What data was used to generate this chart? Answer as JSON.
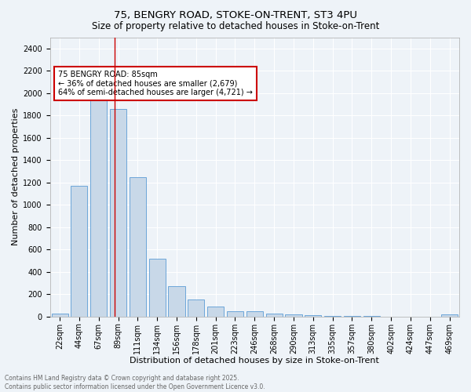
{
  "title1": "75, BENGRY ROAD, STOKE-ON-TRENT, ST3 4PU",
  "title2": "Size of property relative to detached houses in Stoke-on-Trent",
  "xlabel": "Distribution of detached houses by size in Stoke-on-Trent",
  "ylabel": "Number of detached properties",
  "bar_labels": [
    "22sqm",
    "44sqm",
    "67sqm",
    "89sqm",
    "111sqm",
    "134sqm",
    "156sqm",
    "178sqm",
    "201sqm",
    "223sqm",
    "246sqm",
    "268sqm",
    "290sqm",
    "313sqm",
    "335sqm",
    "357sqm",
    "380sqm",
    "402sqm",
    "424sqm",
    "447sqm",
    "469sqm"
  ],
  "bar_values": [
    30,
    1170,
    2000,
    1860,
    1245,
    515,
    275,
    150,
    90,
    45,
    45,
    25,
    20,
    10,
    8,
    5,
    3,
    2,
    1,
    1,
    20
  ],
  "bar_color": "#c8d8e8",
  "bar_edge_color": "#5b9bd5",
  "annotation_text": "75 BENGRY ROAD: 85sqm\n← 36% of detached houses are smaller (2,679)\n64% of semi-detached houses are larger (4,721) →",
  "annotation_box_color": "#ffffff",
  "annotation_box_edge": "#cc0000",
  "vertical_line_x": 2.82,
  "vertical_line_color": "#cc0000",
  "footer_text": "Contains HM Land Registry data © Crown copyright and database right 2025.\nContains public sector information licensed under the Open Government Licence v3.0.",
  "ylim": [
    0,
    2500
  ],
  "yticks": [
    0,
    200,
    400,
    600,
    800,
    1000,
    1200,
    1400,
    1600,
    1800,
    2000,
    2200,
    2400
  ],
  "background_color": "#eef3f8",
  "grid_color": "#ffffff",
  "title_fontsize": 9.5,
  "subtitle_fontsize": 8.5,
  "tick_fontsize": 7,
  "ylabel_fontsize": 8,
  "xlabel_fontsize": 8,
  "annotation_fontsize": 7,
  "footer_fontsize": 5.5
}
